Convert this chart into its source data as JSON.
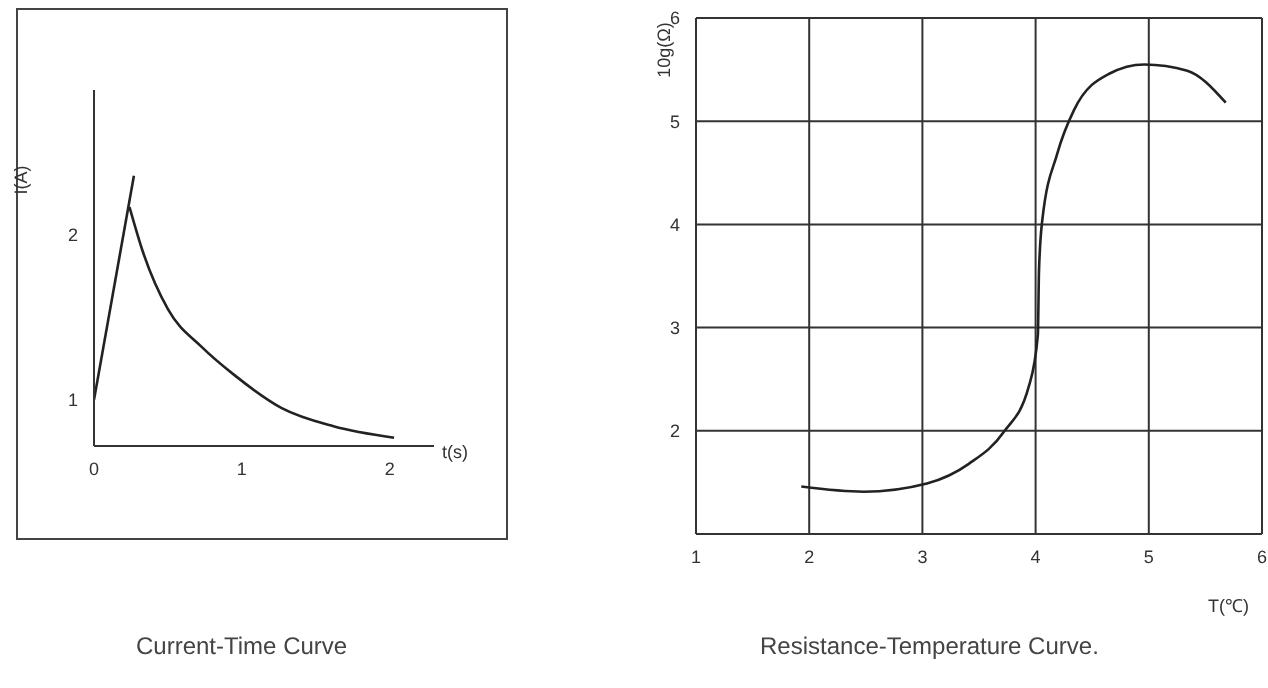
{
  "chart_data": [
    {
      "type": "line",
      "title": "Current-Time Curve",
      "xlabel": "t(s)",
      "ylabel": "I(A)",
      "xlim": [
        0,
        2.3
      ],
      "ylim": [
        0.72,
        2.88
      ],
      "xticks": [
        0,
        1,
        2
      ],
      "yticks": [
        1,
        2
      ],
      "grid": false,
      "marker": "none",
      "series": [
        {
          "color": "#222222",
          "x": [
            0,
            0.27
          ],
          "values": [
            1,
            2.36
          ]
        },
        {
          "color": "#222222",
          "x": [
            0.24,
            0.33,
            0.5,
            0.73,
            0.95,
            1.27,
            1.62,
            2.03
          ],
          "values": [
            2.17,
            1.9,
            1.55,
            1.32,
            1.15,
            0.95,
            0.84,
            0.77
          ]
        }
      ]
    },
    {
      "type": "line",
      "title": "Resistance-Temperature Curve.",
      "xlabel": "T(℃)",
      "ylabel": "10g(Ω)",
      "xlim": [
        1,
        6
      ],
      "ylim": [
        1,
        6
      ],
      "xticks": [
        1,
        2,
        3,
        4,
        5,
        6
      ],
      "yticks": [
        {
          "value": 1,
          "label": null
        },
        2,
        3,
        4,
        5,
        6
      ],
      "grid": true,
      "marker": "none",
      "series": [
        {
          "color": "#222222",
          "x": [
            1.93,
            2.48,
            3.04,
            3.41,
            3.72,
            3.94,
            4.02,
            4.03,
            4.06,
            4.19,
            4.34,
            4.65,
            4.96,
            5.34,
            5.68
          ],
          "values": [
            1.46,
            1.41,
            1.49,
            1.68,
            1.99,
            2.43,
            2.93,
            3.55,
            4.05,
            4.68,
            5.11,
            5.46,
            5.55,
            5.49,
            5.18
          ]
        }
      ]
    }
  ]
}
